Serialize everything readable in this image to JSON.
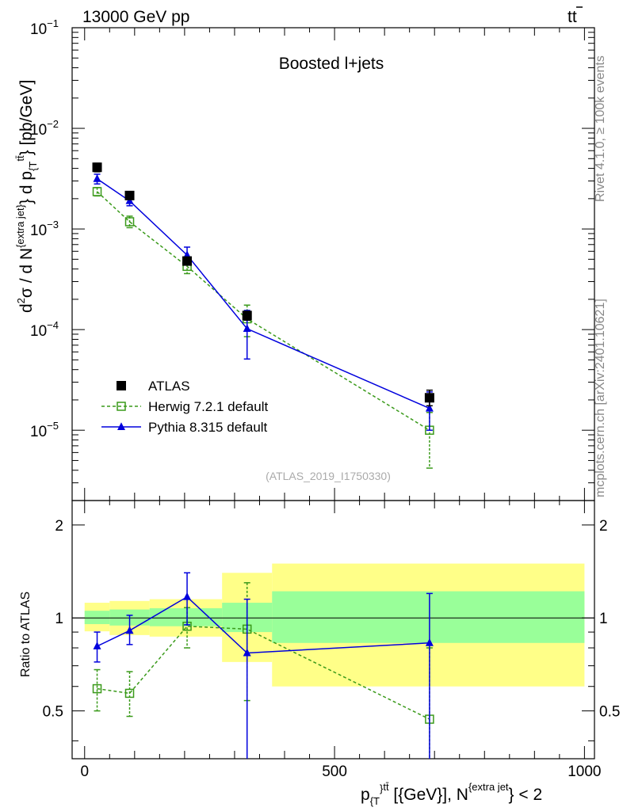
{
  "header": {
    "left_title": "13000 GeV pp",
    "right_title_base": "t",
    "right_title_bar": "t"
  },
  "side_labels": {
    "rivet": "Rivet 4.1.0, ≥ 100k events",
    "mcplots": "mcplots.cern.ch [arXiv:2401.10621]"
  },
  "chart_data": {
    "type": "scatter",
    "title": "Boosted l+jets",
    "analysis_id": "(ATLAS_2019_I1750330)",
    "x_range": [
      -25,
      1020
    ],
    "main": {
      "yscale": "log",
      "ylim": [
        2e-06,
        0.1
      ],
      "ylabel": {
        "pre": "d",
        "sq": "2",
        "mid": "σ  /  d N",
        "sup1": "{extra jet}",
        "mid2": "} d p",
        "sub1": "{T",
        "sup2": "tt̄",
        "post": "} [pb/GeV]"
      },
      "y_ticks": [
        {
          "v": 0.1,
          "b": "10",
          "e": "−1"
        },
        {
          "v": 0.01,
          "b": "10",
          "e": "−2"
        },
        {
          "v": 0.001,
          "b": "10",
          "e": "−3"
        },
        {
          "v": 0.0001,
          "b": "10",
          "e": "−4"
        },
        {
          "v": 1e-05,
          "b": "10",
          "e": "−5"
        }
      ],
      "series": [
        {
          "name": "ATLAS",
          "marker": "filled-square",
          "color": "#000000",
          "points": [
            {
              "x": 25,
              "y": 0.0041,
              "hi": 0.0045,
              "lo": 0.0037
            },
            {
              "x": 90,
              "y": 0.00215,
              "hi": 0.00235,
              "lo": 0.00197
            },
            {
              "x": 205,
              "y": 0.00048,
              "hi": 0.00052,
              "lo": 0.00044
            },
            {
              "x": 325,
              "y": 0.000138,
              "hi": 0.000152,
              "lo": 0.000124
            },
            {
              "x": 690,
              "y": 2.1e-05,
              "hi": 2.5e-05,
              "lo": 1.75e-05
            }
          ]
        },
        {
          "name": "Herwig 7.2.1 default",
          "marker": "open-square",
          "color": "#3a9a1a",
          "points": [
            {
              "x": 25,
              "y": 0.00235,
              "hi": 0.00258,
              "lo": 0.00213
            },
            {
              "x": 90,
              "y": 0.00118,
              "hi": 0.00134,
              "lo": 0.00103
            },
            {
              "x": 205,
              "y": 0.000425,
              "hi": 0.00049,
              "lo": 0.00036
            },
            {
              "x": 325,
              "y": 0.000128,
              "hi": 0.000175,
              "lo": 8.5e-05
            },
            {
              "x": 690,
              "y": 1e-05,
              "hi": 1.5e-05,
              "lo": 4.2e-06
            }
          ]
        },
        {
          "name": "Pythia 8.315 default",
          "marker": "filled-triangle",
          "color": "#0000dd",
          "points": [
            {
              "x": 25,
              "y": 0.00315,
              "hi": 0.0035,
              "lo": 0.0028
            },
            {
              "x": 90,
              "y": 0.0019,
              "hi": 0.0021,
              "lo": 0.0017
            },
            {
              "x": 205,
              "y": 0.00055,
              "hi": 0.00066,
              "lo": 0.00045
            },
            {
              "x": 325,
              "y": 0.000102,
              "hi": 0.000155,
              "lo": 5.1e-05
            },
            {
              "x": 690,
              "y": 1.65e-05,
              "hi": 2.4e-05,
              "lo": 1e-05
            }
          ]
        }
      ]
    },
    "ratio": {
      "yscale": "log",
      "ylim": [
        0.35,
        2.4
      ],
      "ylabel": "Ratio to ATLAS",
      "y_ticks": [
        {
          "v": 0.5,
          "label": "0.5"
        },
        {
          "v": 1,
          "label": "1"
        },
        {
          "v": 2,
          "label": "2"
        }
      ],
      "band_inner_color": "#99ff99",
      "band_outer_color": "#ffff88",
      "bands": [
        {
          "x0": 0,
          "x1": 50,
          "in_lo": 0.955,
          "in_hi": 1.055,
          "out_lo": 0.905,
          "out_hi": 1.12
        },
        {
          "x0": 50,
          "x1": 130,
          "in_lo": 0.945,
          "in_hi": 1.065,
          "out_lo": 0.88,
          "out_hi": 1.135
        },
        {
          "x0": 130,
          "x1": 275,
          "in_lo": 0.94,
          "in_hi": 1.075,
          "out_lo": 0.87,
          "out_hi": 1.15
        },
        {
          "x0": 275,
          "x1": 375,
          "in_lo": 0.9,
          "in_hi": 1.12,
          "out_lo": 0.72,
          "out_hi": 1.4
        },
        {
          "x0": 375,
          "x1": 1000,
          "in_lo": 0.83,
          "in_hi": 1.22,
          "out_lo": 0.6,
          "out_hi": 1.5
        }
      ],
      "series": [
        {
          "name": "Herwig 7.2.1 default",
          "marker": "open-square",
          "color": "#3a9a1a",
          "points": [
            {
              "x": 25,
              "y": 0.59,
              "hi": 0.68,
              "lo": 0.5
            },
            {
              "x": 90,
              "y": 0.57,
              "hi": 0.67,
              "lo": 0.48
            },
            {
              "x": 205,
              "y": 0.94,
              "hi": 1.08,
              "lo": 0.8
            },
            {
              "x": 325,
              "y": 0.92,
              "hi": 1.3,
              "lo": 0.54
            },
            {
              "x": 690,
              "y": 0.47,
              "hi": 0.8,
              "lo": 0.2
            }
          ]
        },
        {
          "name": "Pythia 8.315 default",
          "marker": "filled-triangle",
          "color": "#0000dd",
          "points": [
            {
              "x": 25,
              "y": 0.81,
              "hi": 0.9,
              "lo": 0.72
            },
            {
              "x": 90,
              "y": 0.91,
              "hi": 1.02,
              "lo": 0.82
            },
            {
              "x": 205,
              "y": 1.17,
              "hi": 1.4,
              "lo": 0.95
            },
            {
              "x": 325,
              "y": 0.77,
              "hi": 1.15,
              "lo": 0.3
            },
            {
              "x": 690,
              "y": 0.83,
              "hi": 1.2,
              "lo": 0.3
            }
          ]
        }
      ]
    },
    "x_ticks": [
      {
        "v": 0,
        "label": "0"
      },
      {
        "v": 500,
        "label": "500"
      },
      {
        "v": 1000,
        "label": "1000"
      }
    ],
    "xlabel": {
      "p": "p",
      "sub1": "{T",
      "sup1": "}",
      "sup2": "tt̄",
      "mid": " [{GeV}], N",
      "sup3": "{extra jet",
      "post": "} < 2"
    },
    "legend": {
      "placement": "lower-left",
      "entries": [
        "ATLAS",
        "Herwig 7.2.1 default",
        "Pythia 8.315 default"
      ]
    }
  }
}
